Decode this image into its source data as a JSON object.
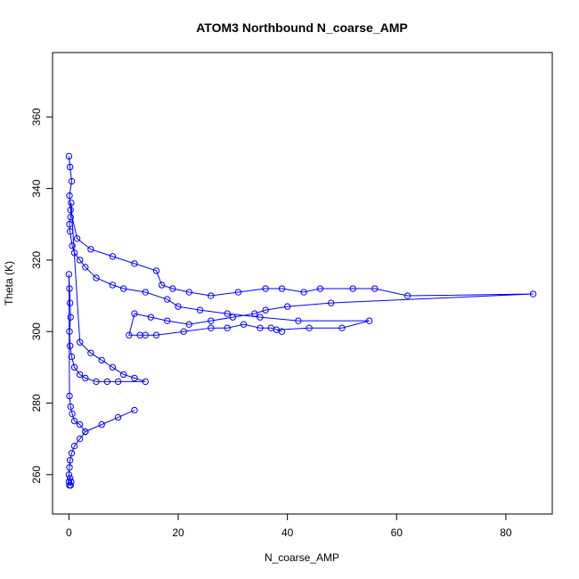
{
  "chart_data": {
    "type": "scatter",
    "title": "ATOM3 Northbound N_coarse_AMP",
    "xlabel": "N_coarse_AMP",
    "ylabel": "Theta (K)",
    "xlim": [
      -3,
      88.5
    ],
    "ylim": [
      249,
      378
    ],
    "x_ticks": [
      0,
      20,
      40,
      60,
      80
    ],
    "y_ticks": [
      260,
      280,
      300,
      320,
      340,
      360
    ],
    "grid": false,
    "legend": "none",
    "marker": "open-circle",
    "connect_points": true,
    "color": "#0000ff",
    "series": [
      {
        "x": [
          0.0,
          0.2,
          0.5,
          0.1,
          0.3,
          1.5,
          4,
          8,
          12,
          16,
          17,
          19,
          22,
          26,
          31,
          36,
          39,
          43,
          46,
          52,
          56,
          62,
          85,
          48,
          40,
          36,
          34,
          30,
          26,
          22,
          18,
          15,
          12,
          11,
          13,
          14,
          16,
          21,
          26,
          29,
          32,
          35,
          37,
          39,
          38,
          44,
          50,
          55,
          42,
          35,
          29,
          24,
          20,
          18,
          14,
          10,
          8,
          5,
          3,
          2,
          1,
          0.6,
          0.2,
          0.1,
          0.3,
          0.4,
          2,
          4,
          6,
          8,
          10,
          12,
          14,
          9,
          7,
          5,
          3,
          2,
          1,
          0.5,
          0.2,
          0.1,
          0.3,
          0.2,
          0.1,
          0.0,
          0.1,
          0.3,
          0.6,
          1,
          2,
          3,
          12,
          9,
          6,
          3,
          2,
          1,
          0.5,
          0.2,
          0.1,
          0.0,
          0.2,
          0.4,
          0.3,
          0.1,
          0.0
        ],
        "y": [
          349,
          346,
          342,
          338,
          334,
          326,
          323,
          321,
          319,
          317,
          313,
          312,
          311,
          310,
          311,
          312,
          312,
          311,
          312,
          312,
          312,
          310,
          310.5,
          308,
          307,
          306,
          305,
          304,
          303,
          302,
          303,
          304,
          305,
          299,
          299,
          299,
          299,
          300,
          301,
          301,
          302,
          301,
          301,
          300,
          300.5,
          301,
          301,
          303,
          303,
          304,
          305,
          306,
          307,
          309,
          311,
          312,
          313,
          315,
          318,
          320,
          322,
          324,
          328,
          330,
          332,
          336,
          297,
          294,
          292,
          290,
          288,
          287,
          286,
          286,
          286,
          286,
          287,
          288,
          290,
          293,
          296,
          300,
          304,
          308,
          312,
          316,
          282,
          279,
          277,
          275,
          274,
          272,
          278,
          276,
          274,
          272,
          270,
          268,
          266,
          264,
          262,
          260,
          259,
          258,
          257,
          257,
          258
        ]
      }
    ]
  }
}
